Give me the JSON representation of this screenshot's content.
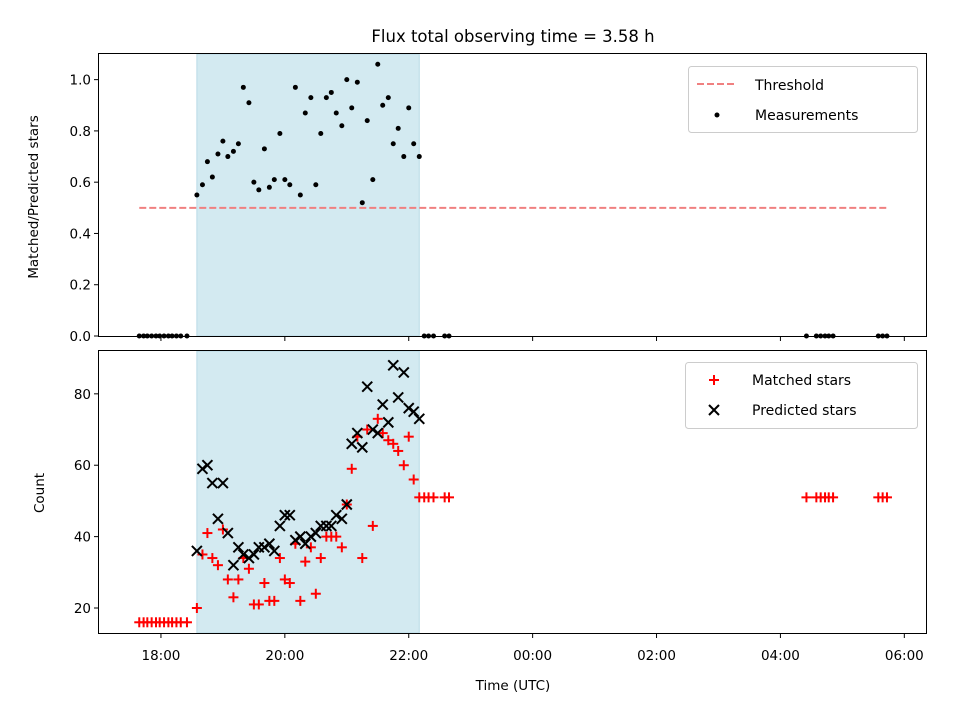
{
  "chart_data": [
    {
      "type": "scatter",
      "title": "Flux total observing time = 3.58 h",
      "xlabel": "",
      "ylabel": "Matched/Predicted stars",
      "ylim": [
        0,
        1.1
      ],
      "yticks": [
        0.0,
        0.2,
        0.4,
        0.6,
        0.8,
        1.0
      ],
      "ytick_labels": [
        "0.0",
        "0.2",
        "0.4",
        "0.6",
        "0.8",
        "1.0"
      ],
      "xlim": [
        17.0,
        30.35
      ],
      "shaded_span": [
        18.58,
        22.17
      ],
      "shaded_color": "#d3eaf1",
      "legend_position": "upper right",
      "threshold": {
        "name": "Threshold",
        "value": 0.5,
        "x_range": [
          17.65,
          29.75
        ],
        "color": "#f08080"
      },
      "series": [
        {
          "name": "Measurements",
          "color": "#000000",
          "points": [
            [
              17.65,
              0
            ],
            [
              17.72,
              0
            ],
            [
              17.78,
              0
            ],
            [
              17.85,
              0
            ],
            [
              17.92,
              0
            ],
            [
              17.98,
              0
            ],
            [
              18.05,
              0
            ],
            [
              18.12,
              0
            ],
            [
              18.18,
              0
            ],
            [
              18.25,
              0
            ],
            [
              18.32,
              0
            ],
            [
              18.42,
              0
            ],
            [
              18.58,
              0.55
            ],
            [
              18.67,
              0.59
            ],
            [
              18.75,
              0.68
            ],
            [
              18.83,
              0.62
            ],
            [
              18.92,
              0.71
            ],
            [
              19.0,
              0.76
            ],
            [
              19.08,
              0.7
            ],
            [
              19.17,
              0.72
            ],
            [
              19.25,
              0.75
            ],
            [
              19.33,
              0.97
            ],
            [
              19.42,
              0.91
            ],
            [
              19.5,
              0.6
            ],
            [
              19.58,
              0.57
            ],
            [
              19.67,
              0.73
            ],
            [
              19.75,
              0.58
            ],
            [
              19.83,
              0.61
            ],
            [
              19.92,
              0.79
            ],
            [
              20.0,
              0.61
            ],
            [
              20.08,
              0.59
            ],
            [
              20.17,
              0.97
            ],
            [
              20.25,
              0.55
            ],
            [
              20.33,
              0.87
            ],
            [
              20.42,
              0.93
            ],
            [
              20.5,
              0.59
            ],
            [
              20.58,
              0.79
            ],
            [
              20.67,
              0.93
            ],
            [
              20.75,
              0.95
            ],
            [
              20.83,
              0.87
            ],
            [
              20.92,
              0.82
            ],
            [
              21.0,
              1.0
            ],
            [
              21.08,
              0.89
            ],
            [
              21.17,
              0.99
            ],
            [
              21.25,
              0.52
            ],
            [
              21.33,
              0.84
            ],
            [
              21.42,
              0.61
            ],
            [
              21.5,
              1.06
            ],
            [
              21.58,
              0.9
            ],
            [
              21.67,
              0.93
            ],
            [
              21.75,
              0.75
            ],
            [
              21.83,
              0.81
            ],
            [
              21.92,
              0.7
            ],
            [
              22.0,
              0.89
            ],
            [
              22.08,
              0.75
            ],
            [
              22.17,
              0.7
            ],
            [
              22.25,
              0
            ],
            [
              22.32,
              0
            ],
            [
              22.4,
              0
            ],
            [
              22.58,
              0
            ],
            [
              22.65,
              0
            ],
            [
              28.42,
              0
            ],
            [
              28.58,
              0
            ],
            [
              28.65,
              0
            ],
            [
              28.72,
              0
            ],
            [
              28.78,
              0
            ],
            [
              28.85,
              0
            ],
            [
              29.58,
              0
            ],
            [
              29.65,
              0
            ],
            [
              29.72,
              0
            ]
          ]
        }
      ]
    },
    {
      "type": "scatter",
      "title": "",
      "xlabel": "Time (UTC)",
      "ylabel": "Count",
      "ylim": [
        13,
        92
      ],
      "yticks": [
        20,
        40,
        60,
        80
      ],
      "ytick_labels": [
        "20",
        "40",
        "60",
        "80"
      ],
      "xlim": [
        17.0,
        30.35
      ],
      "xticks": [
        18,
        20,
        22,
        24,
        26,
        28,
        30
      ],
      "xtick_labels": [
        "18:00",
        "20:00",
        "22:00",
        "00:00",
        "02:00",
        "04:00",
        "06:00"
      ],
      "shaded_span": [
        18.58,
        22.17
      ],
      "shaded_color": "#d3eaf1",
      "legend_position": "upper right",
      "series": [
        {
          "name": "Matched stars",
          "marker": "plus",
          "color": "#ff0000",
          "points": [
            [
              17.65,
              16
            ],
            [
              17.72,
              16
            ],
            [
              17.78,
              16
            ],
            [
              17.85,
              16
            ],
            [
              17.92,
              16
            ],
            [
              17.98,
              16
            ],
            [
              18.05,
              16
            ],
            [
              18.12,
              16
            ],
            [
              18.18,
              16
            ],
            [
              18.25,
              16
            ],
            [
              18.32,
              16
            ],
            [
              18.42,
              16
            ],
            [
              18.58,
              20
            ],
            [
              18.67,
              35
            ],
            [
              18.75,
              41
            ],
            [
              18.83,
              34
            ],
            [
              18.92,
              32
            ],
            [
              19.0,
              42
            ],
            [
              19.08,
              28
            ],
            [
              19.17,
              23
            ],
            [
              19.25,
              28
            ],
            [
              19.33,
              34
            ],
            [
              19.42,
              31
            ],
            [
              19.5,
              21
            ],
            [
              19.58,
              21
            ],
            [
              19.67,
              27
            ],
            [
              19.75,
              22
            ],
            [
              19.83,
              22
            ],
            [
              19.92,
              34
            ],
            [
              20.0,
              28
            ],
            [
              20.08,
              27
            ],
            [
              20.17,
              38
            ],
            [
              20.25,
              22
            ],
            [
              20.33,
              33
            ],
            [
              20.42,
              37
            ],
            [
              20.5,
              24
            ],
            [
              20.58,
              34
            ],
            [
              20.67,
              40
            ],
            [
              20.75,
              40
            ],
            [
              20.83,
              40
            ],
            [
              20.92,
              37
            ],
            [
              21.0,
              49
            ],
            [
              21.08,
              59
            ],
            [
              21.17,
              68
            ],
            [
              21.25,
              34
            ],
            [
              21.33,
              70
            ],
            [
              21.42,
              43
            ],
            [
              21.5,
              73
            ],
            [
              21.58,
              69
            ],
            [
              21.67,
              67
            ],
            [
              21.75,
              66
            ],
            [
              21.83,
              64
            ],
            [
              21.92,
              60
            ],
            [
              22.0,
              68
            ],
            [
              22.08,
              56
            ],
            [
              22.17,
              51
            ],
            [
              22.25,
              51
            ],
            [
              22.32,
              51
            ],
            [
              22.4,
              51
            ],
            [
              22.58,
              51
            ],
            [
              22.65,
              51
            ],
            [
              28.42,
              51
            ],
            [
              28.58,
              51
            ],
            [
              28.65,
              51
            ],
            [
              28.72,
              51
            ],
            [
              28.78,
              51
            ],
            [
              28.85,
              51
            ],
            [
              29.58,
              51
            ],
            [
              29.65,
              51
            ],
            [
              29.72,
              51
            ]
          ]
        },
        {
          "name": "Predicted stars",
          "marker": "x",
          "color": "#000000",
          "points": [
            [
              18.58,
              36
            ],
            [
              18.67,
              59
            ],
            [
              18.75,
              60
            ],
            [
              18.83,
              55
            ],
            [
              18.92,
              45
            ],
            [
              19.0,
              55
            ],
            [
              19.08,
              41
            ],
            [
              19.17,
              32
            ],
            [
              19.25,
              37
            ],
            [
              19.33,
              35
            ],
            [
              19.42,
              34
            ],
            [
              19.5,
              35
            ],
            [
              19.58,
              37
            ],
            [
              19.67,
              37
            ],
            [
              19.75,
              38
            ],
            [
              19.83,
              36
            ],
            [
              19.92,
              43
            ],
            [
              20.0,
              46
            ],
            [
              20.08,
              46
            ],
            [
              20.17,
              39
            ],
            [
              20.25,
              40
            ],
            [
              20.33,
              38
            ],
            [
              20.42,
              40
            ],
            [
              20.5,
              41
            ],
            [
              20.58,
              43
            ],
            [
              20.67,
              43
            ],
            [
              20.75,
              43
            ],
            [
              20.83,
              46
            ],
            [
              20.92,
              45
            ],
            [
              21.0,
              49
            ],
            [
              21.08,
              66
            ],
            [
              21.17,
              69
            ],
            [
              21.25,
              65
            ],
            [
              21.33,
              82
            ],
            [
              21.42,
              70
            ],
            [
              21.5,
              69
            ],
            [
              21.58,
              77
            ],
            [
              21.67,
              72
            ],
            [
              21.75,
              88
            ],
            [
              21.83,
              79
            ],
            [
              21.92,
              86
            ],
            [
              22.0,
              76
            ],
            [
              22.08,
              75
            ],
            [
              22.17,
              73
            ]
          ]
        }
      ]
    }
  ]
}
